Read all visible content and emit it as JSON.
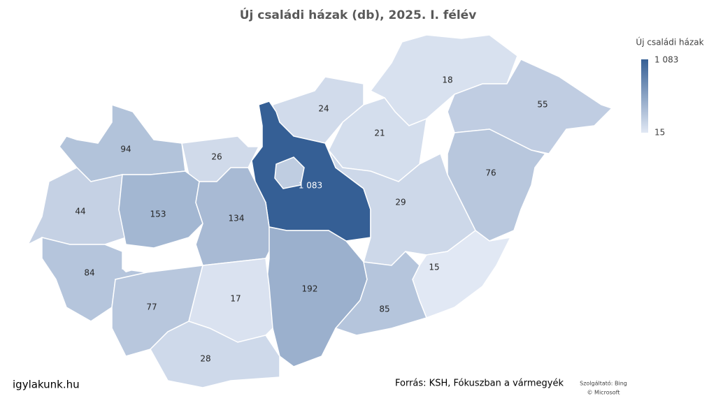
{
  "map": {
    "title": "Új családi házak (db), 2025. I. félév",
    "legend": {
      "title": "Új családi házak",
      "max": {
        "value": 1083,
        "label": "1 083"
      },
      "min": 15
    },
    "colors": {
      "low": "#e1e8f4",
      "high": "#355f95"
    },
    "regions": {
      "values": [
        18,
        24,
        55,
        21,
        94,
        26,
        1083,
        76,
        29,
        44,
        153,
        134,
        84,
        15,
        192,
        77,
        17,
        85,
        28
      ],
      "value_labels": [
        "18",
        "24",
        "55",
        "21",
        "94",
        "26",
        "1 083",
        "76",
        "29",
        "44",
        "153",
        "134",
        "84",
        "15",
        "192",
        "77",
        "17",
        "85",
        "28"
      ]
    }
  },
  "footer": {
    "site": "igylakunk.hu",
    "source": "Forrás: KSH, Fókuszban a vármegyék",
    "provider": "Szolgáltató: Bing",
    "copyright": "© Microsoft"
  }
}
